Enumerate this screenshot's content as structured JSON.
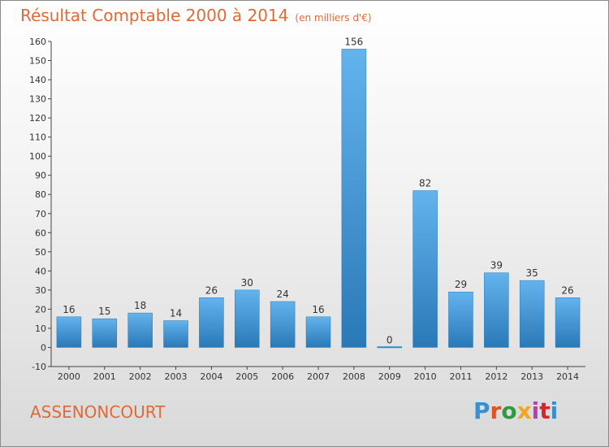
{
  "header": {
    "title": "Résultat Comptable 2000 à 2014",
    "subtitle": "(en milliers d'€)"
  },
  "footer": {
    "commune": "ASSENONCOURT",
    "logo_text": "Proxiti",
    "logo_colors": [
      "#3a8fd1",
      "#e0521f",
      "#2e9a3e",
      "#f0a81c",
      "#b83fb0",
      "#d6262c",
      "#3a8fd1"
    ]
  },
  "colors": {
    "title": "#e06a3a",
    "bar_top": "#63b3ee",
    "bar_bottom": "#2a79b7",
    "axis": "#444444",
    "grid": "#d0d0d0"
  },
  "chart_data": {
    "type": "bar",
    "categories": [
      "2000",
      "2001",
      "2002",
      "2003",
      "2004",
      "2005",
      "2006",
      "2007",
      "2008",
      "2009",
      "2010",
      "2011",
      "2012",
      "2013",
      "2014"
    ],
    "values": [
      16,
      15,
      18,
      14,
      26,
      30,
      24,
      16,
      156,
      0,
      82,
      29,
      39,
      35,
      26
    ],
    "ylim": [
      -10,
      160
    ],
    "yticks": [
      -10,
      0,
      10,
      20,
      30,
      40,
      50,
      60,
      70,
      80,
      90,
      100,
      110,
      120,
      130,
      140,
      150,
      160
    ],
    "grid": false,
    "legend": "none"
  }
}
